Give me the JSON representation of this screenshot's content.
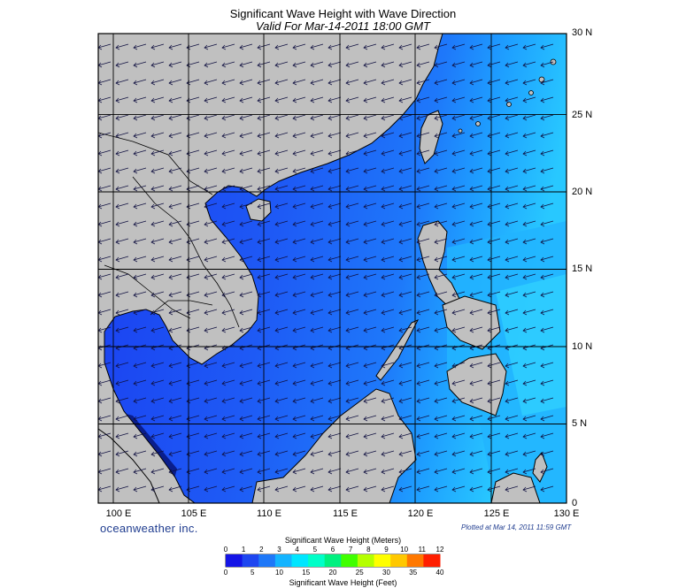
{
  "title": "Significant Wave Height with Wave Direction",
  "subtitle": "Valid For Mar-14-2011 18:00 GMT",
  "brand": "oceanweather inc.",
  "plotted_note": "Plotted at Mar 14, 2011 11:59 GMT",
  "lat_labels": [
    "30 N",
    "25 N",
    "20 N",
    "15 N",
    "10 N",
    "5 N",
    "0"
  ],
  "lon_labels": [
    "100 E",
    "105 E",
    "110 E",
    "115 E",
    "120 E",
    "125 E",
    "130 E"
  ],
  "colorbar": {
    "title_meters": "Significant Wave Height (Meters)",
    "title_feet": "Significant Wave Height (Feet)",
    "meter_ticks": [
      "0",
      "1",
      "2",
      "3",
      "4",
      "5",
      "6",
      "7",
      "8",
      "9",
      "10",
      "11",
      "12"
    ],
    "feet_ticks": [
      "0",
      "5",
      "10",
      "15",
      "20",
      "25",
      "30",
      "35",
      "40"
    ],
    "colors": [
      "#1414e6",
      "#1e46f0",
      "#1e78f8",
      "#14b4ff",
      "#00e6ff",
      "#00ffc8",
      "#00f080",
      "#40ff00",
      "#b4ff00",
      "#ffff00",
      "#ffc800",
      "#ff7800",
      "#ff1e00"
    ]
  },
  "colors": {
    "land": "#c0c0c0",
    "deep_sea": "#1e50f0",
    "mid_sea": "#1e8cff",
    "light_sea": "#28b4ff",
    "text_blue": "#1f3c8f"
  },
  "map": {
    "lon_range": [
      99,
      130
    ],
    "lat_range": [
      0,
      30
    ],
    "wave_direction": "toward west-southwest"
  }
}
